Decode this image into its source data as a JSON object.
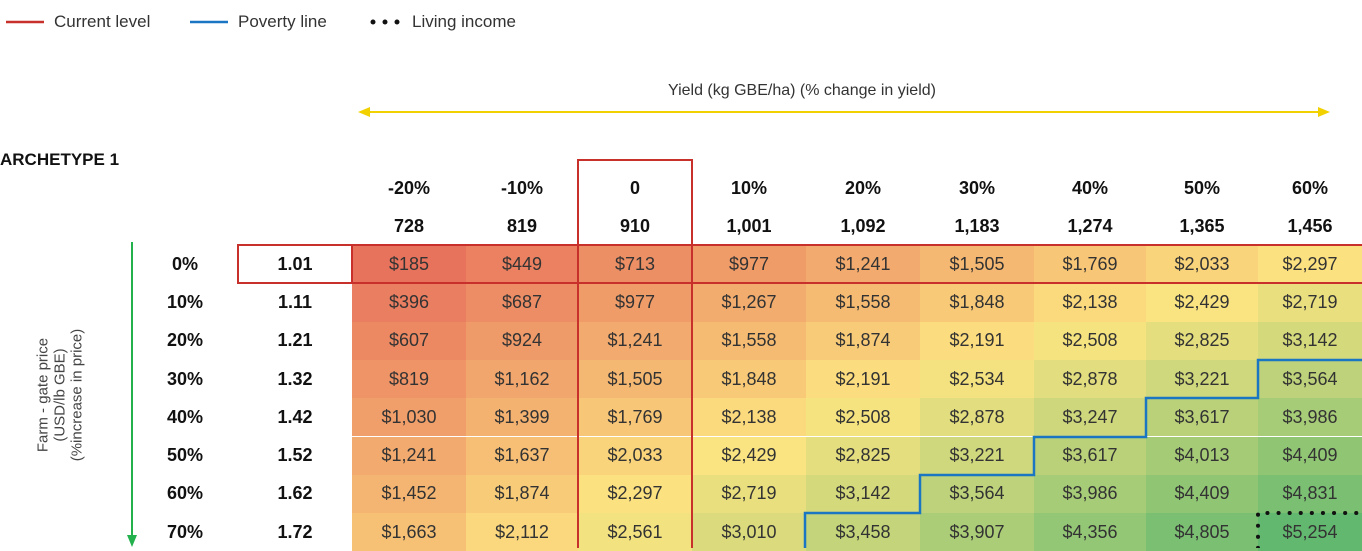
{
  "legend": {
    "current": "Current level",
    "poverty": "Poverty line",
    "living": "Living income"
  },
  "yield_label": "Yield (kg GBE/ha) (% change in yield)",
  "archetype": "ARCHETYPE 1",
  "price_label": [
    "Farm - gate price",
    "(USD/lb GBE)",
    "(%increase in price)"
  ],
  "table": {
    "col_pct": [
      "-20%",
      "-10%",
      "0",
      "10%",
      "20%",
      "30%",
      "40%",
      "50%",
      "60%"
    ],
    "col_yield": [
      "728",
      "819",
      "910",
      "1,001",
      "1,092",
      "1,183",
      "1,274",
      "1,365",
      "1,456"
    ],
    "row_pct": [
      "0%",
      "10%",
      "20%",
      "30%",
      "40%",
      "50%",
      "60%",
      "70%"
    ],
    "row_price": [
      "1.01",
      "1.11",
      "1.21",
      "1.32",
      "1.42",
      "1.52",
      "1.62",
      "1.72"
    ],
    "rows": [
      [
        "$185",
        "$449",
        "$713",
        "$977",
        "$1,241",
        "$1,505",
        "$1,769",
        "$2,033",
        "$2,297"
      ],
      [
        "$396",
        "$687",
        "$977",
        "$1,267",
        "$1,558",
        "$1,848",
        "$2,138",
        "$2,429",
        "$2,719"
      ],
      [
        "$607",
        "$924",
        "$1,241",
        "$1,558",
        "$1,874",
        "$2,191",
        "$2,508",
        "$2,825",
        "$3,142"
      ],
      [
        "$819",
        "$1,162",
        "$1,505",
        "$1,848",
        "$2,191",
        "$2,534",
        "$2,878",
        "$3,221",
        "$3,564"
      ],
      [
        "$1,030",
        "$1,399",
        "$1,769",
        "$2,138",
        "$2,508",
        "$2,878",
        "$3,247",
        "$3,617",
        "$3,986"
      ],
      [
        "$1,241",
        "$1,637",
        "$2,033",
        "$2,429",
        "$2,825",
        "$3,221",
        "$3,617",
        "$4,013",
        "$4,409"
      ],
      [
        "$1,452",
        "$1,874",
        "$2,297",
        "$2,719",
        "$3,142",
        "$3,564",
        "$3,986",
        "$4,409",
        "$4,831"
      ],
      [
        "$1,663",
        "$2,112",
        "$2,561",
        "$3,010",
        "$3,458",
        "$3,907",
        "$4,356",
        "$4,805",
        "$5,254"
      ]
    ]
  }
}
